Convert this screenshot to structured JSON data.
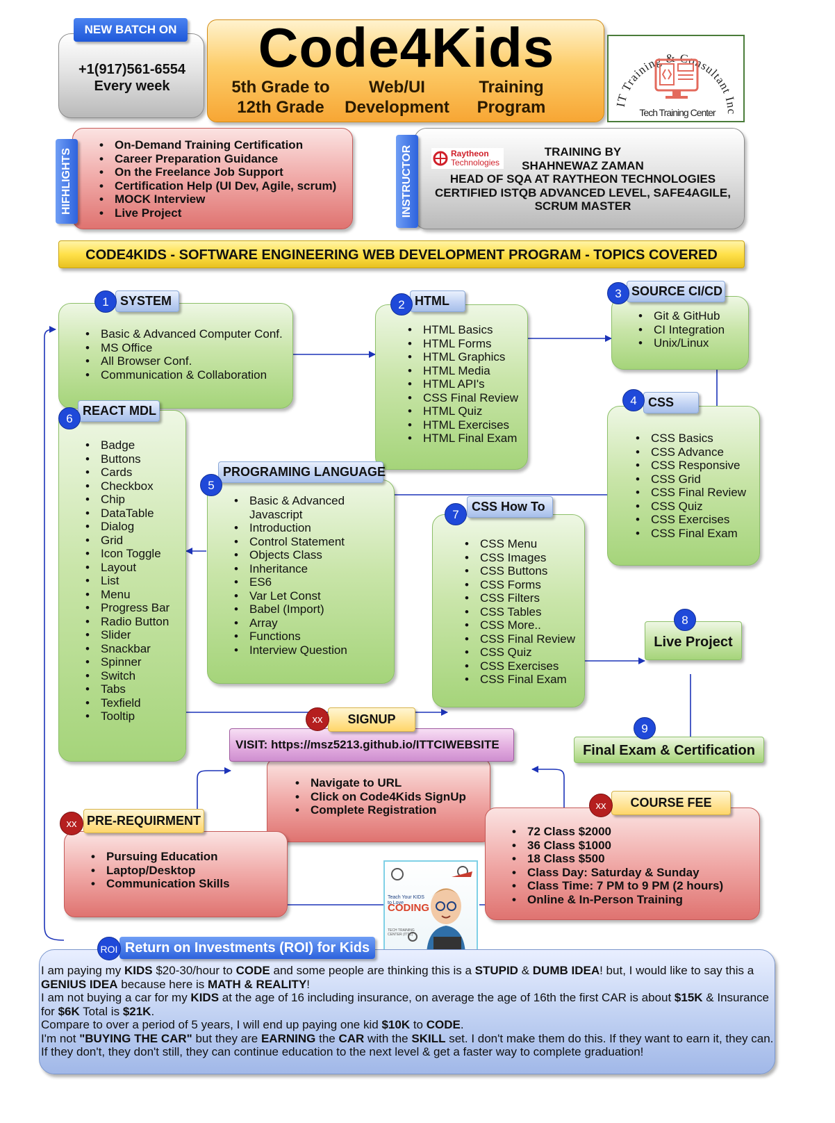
{
  "header": {
    "new_batch_label": "NEW BATCH ON",
    "phone": "+1(917)561-6554",
    "frequency": "Every week",
    "title": "Code4Kids",
    "subtitle_col1": [
      "5th Grade to",
      "12th Grade"
    ],
    "subtitle_col2": [
      "Web/UI",
      "Development"
    ],
    "subtitle_col3": [
      "Training",
      "Program"
    ],
    "logo_arc_text": "IT Training & Consultant Inc.",
    "logo_caption": "Tech Training Center"
  },
  "highlights": {
    "side_label": "HIFHLIGHTS",
    "items": [
      "On-Demand Training Certification",
      "Career Preparation Guidance",
      "On the Freelance Job Support",
      "Certification Help (UI Dev, Agile, scrum)",
      "MOCK Interview",
      "Live Project"
    ]
  },
  "instructor": {
    "side_label": "INSTRUCTOR",
    "company_logo_text": [
      "Raytheon",
      "Technologies"
    ],
    "lines": [
      "TRAINING BY",
      "SHAHNEWAZ ZAMAN",
      "HEAD OF SQA AT RAYTHEON TECHNOLOGIES",
      "CERTIFIED ISTQB ADVANCED LEVEL, SAFE4AGILE,",
      "SCRUM MASTER"
    ]
  },
  "banner": "CODE4KIDS - SOFTWARE ENGINEERING WEB DEVELOPMENT PROGRAM - TOPICS COVERED",
  "modules": {
    "system": {
      "number": "1",
      "title": "SYSTEM",
      "items": [
        "Basic & Advanced Computer Conf.",
        "MS Office",
        "All Browser Conf.",
        "Communication & Collaboration"
      ]
    },
    "html": {
      "number": "2",
      "title": "HTML",
      "items": [
        "HTML Basics",
        "HTML Forms",
        "HTML Graphics",
        "HTML Media",
        "HTML API's",
        "CSS Final Review",
        "HTML Quiz",
        "HTML Exercises",
        "HTML Final Exam"
      ]
    },
    "source": {
      "number": "3",
      "title": "SOURCE CI/CD",
      "items": [
        "Git & GitHub",
        "CI Integration",
        "Unix/Linux"
      ]
    },
    "css": {
      "number": "4",
      "title": "CSS",
      "items": [
        "CSS Basics",
        "CSS Advance",
        "CSS Responsive",
        "CSS Grid",
        "CSS Final Review",
        "CSS Quiz",
        "CSS Exercises",
        "CSS Final Exam"
      ]
    },
    "programming": {
      "number": "5",
      "title": "PROGRAMING  LANGUAGE",
      "items": [
        "Basic & Advanced Javascript",
        "Introduction",
        "Control Statement",
        "Objects Class",
        "Inheritance",
        "ES6",
        "Var Let Const",
        "Babel (Import)",
        "Array",
        "Functions",
        "Interview Question"
      ]
    },
    "react": {
      "number": "6",
      "title": "REACT MDL",
      "items": [
        "Badge",
        "Buttons",
        "Cards",
        "Checkbox",
        "Chip",
        "DataTable",
        "Dialog",
        "Grid",
        "Icon Toggle",
        "Layout",
        "List",
        "Menu",
        "Progress Bar",
        "Radio Button",
        "Slider",
        "Snackbar",
        "Spinner",
        "Switch",
        "Tabs",
        "Texfield",
        "Tooltip"
      ]
    },
    "css_howto": {
      "number": "7",
      "title": "CSS How To",
      "items": [
        "CSS Menu",
        "CSS Images",
        "CSS Buttons",
        "CSS Forms",
        "CSS Filters",
        "CSS Tables",
        "CSS More..",
        "CSS Final Review",
        "CSS Quiz",
        "CSS Exercises",
        "CSS Final Exam"
      ]
    },
    "live_project": {
      "number": "8",
      "title": "Live Project"
    },
    "final_exam": {
      "number": "9",
      "title": "Final Exam & Certification"
    }
  },
  "signup": {
    "badge": "xx",
    "title": "SIGNUP",
    "visit": "VISIT: https://msz5213.github.io/ITTCIWEBSITE",
    "items": [
      "Navigate to URL",
      "Click on Code4Kids SignUp",
      "Complete Registration"
    ]
  },
  "prereq": {
    "badge": "xx",
    "title": "PRE-REQUIRMENT",
    "items": [
      "Pursuing Education",
      "Laptop/Desktop",
      "Communication Skills"
    ]
  },
  "course_fee": {
    "badge": "xx",
    "title": "COURSE FEE",
    "items": [
      "72 Class $2000",
      "36 Class $1000",
      "18 Class $500",
      "Class Day: Saturday & Sunday",
      "Class Time: 7 PM to 9 PM (2 hours)",
      "Online & In-Person Training"
    ]
  },
  "book": {
    "line1": "Teach Your KIDS to Love",
    "line2": "CODING",
    "line3": "TECH TRAINING CENTER (ITTC)"
  },
  "roi": {
    "badge": "ROI",
    "title": "Return on Investments (ROI) for Kids",
    "p1": [
      {
        "t": "I am paying my "
      },
      {
        "t": "KIDS",
        "b": true
      },
      {
        "t": " $20-30/hour to "
      },
      {
        "t": "CODE",
        "b": true
      },
      {
        "t": " and some people are thinking this is a "
      },
      {
        "t": "STUPID",
        "b": true
      },
      {
        "t": " & "
      },
      {
        "t": "DUMB IDEA",
        "b": true
      },
      {
        "t": "! but, I would like to say this a "
      },
      {
        "t": "GENIUS IDEA",
        "b": true
      },
      {
        "t": " because here is "
      },
      {
        "t": "MATH & REALITY",
        "b": true
      },
      {
        "t": "!"
      }
    ],
    "p2": [
      {
        "t": "I am not buying a car for my "
      },
      {
        "t": "KIDS",
        "b": true
      },
      {
        "t": " at the age of 16 including insurance, on average the age of 16th the first CAR is about "
      },
      {
        "t": "$15K",
        "b": true
      },
      {
        "t": " & Insurance for "
      },
      {
        "t": "$6K",
        "b": true
      },
      {
        "t": " Total is "
      },
      {
        "t": "$21K",
        "b": true
      },
      {
        "t": "."
      }
    ],
    "p3": [
      {
        "t": "Compare to over a period of 5 years, I will end up paying one kid "
      },
      {
        "t": "$10K",
        "b": true
      },
      {
        "t": " to "
      },
      {
        "t": "CODE",
        "b": true
      },
      {
        "t": "."
      }
    ],
    "p4": [
      {
        "t": "I'm not "
      },
      {
        "t": "\"BUYING THE CAR\"",
        "b": true
      },
      {
        "t": " but they are "
      },
      {
        "t": "EARNING",
        "b": true
      },
      {
        "t": " the "
      },
      {
        "t": "CAR",
        "b": true
      },
      {
        "t": " with the "
      },
      {
        "t": "SKILL",
        "b": true
      },
      {
        "t": " set. I don't make them do this. If they want to earn it, they can. If they don't, they don't still, they can continue education to the next level & get a faster way to complete graduation!"
      }
    ]
  },
  "colors": {
    "accent_blue": "#1f49d9",
    "badge_red": "#b51f1f",
    "arrow": "#1c33b8",
    "title_orange": "#fbb03b"
  }
}
